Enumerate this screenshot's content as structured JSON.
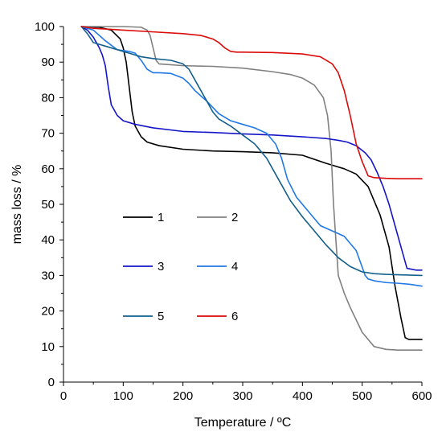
{
  "chart_data": {
    "type": "line",
    "title": "",
    "xlabel": "Temperature  / ºC",
    "ylabel": "mass loss / %",
    "xlim": [
      0,
      600
    ],
    "ylim": [
      0,
      100
    ],
    "x_ticks": [
      "0",
      "100",
      "200",
      "300",
      "400",
      "500",
      "600"
    ],
    "y_ticks": [
      "0",
      "10",
      "20",
      "30",
      "40",
      "50",
      "60",
      "70",
      "80",
      "90",
      "100"
    ],
    "grid": false,
    "legend_placement": "lower-left inside plot, two columns",
    "series": [
      {
        "name": "1",
        "color": "#000000",
        "x": [
          30,
          60,
          80,
          95,
          100,
          105,
          110,
          115,
          120,
          130,
          140,
          160,
          200,
          250,
          300,
          350,
          400,
          440,
          470,
          490,
          510,
          530,
          545,
          555,
          565,
          572,
          578,
          600
        ],
        "y": [
          100,
          99.8,
          99,
          96.5,
          94,
          90,
          83,
          76,
          72,
          69,
          67.5,
          66.5,
          65.5,
          65,
          64.8,
          64.5,
          63.8,
          61.5,
          60,
          58.5,
          55,
          47,
          38,
          27,
          18,
          12.5,
          12,
          12
        ]
      },
      {
        "name": "2",
        "color": "#808080",
        "x": [
          30,
          100,
          130,
          140,
          145,
          150,
          155,
          160,
          200,
          250,
          300,
          350,
          380,
          400,
          420,
          435,
          442,
          448,
          452,
          456,
          460,
          470,
          480,
          500,
          520,
          540,
          560,
          600
        ],
        "y": [
          100,
          100,
          99.8,
          99,
          97.5,
          94,
          90.5,
          89.5,
          89,
          88.8,
          88.3,
          87.3,
          86.5,
          85.5,
          83.5,
          80,
          75,
          65,
          50,
          40,
          30,
          25,
          21,
          14,
          10,
          9.2,
          9,
          9
        ]
      },
      {
        "name": "3",
        "color": "#1515c8",
        "x": [
          30,
          40,
          50,
          60,
          65,
          70,
          75,
          80,
          90,
          100,
          120,
          150,
          200,
          250,
          300,
          350,
          400,
          440,
          460,
          475,
          490,
          505,
          515,
          525,
          535,
          545,
          555,
          565,
          575,
          590,
          600
        ],
        "y": [
          100,
          99,
          97,
          94,
          92,
          89,
          83,
          78,
          75,
          73.5,
          72.5,
          71.5,
          70.5,
          70.2,
          69.8,
          69.5,
          69,
          68.5,
          68,
          67.5,
          66.5,
          64.5,
          62.5,
          59,
          55,
          50,
          44,
          38,
          32,
          31.5,
          31.5
        ]
      },
      {
        "name": "4",
        "color": "#1e78e6",
        "x": [
          30,
          40,
          50,
          70,
          90,
          110,
          120,
          130,
          140,
          150,
          160,
          180,
          200,
          210,
          220,
          240,
          260,
          280,
          300,
          320,
          340,
          355,
          365,
          375,
          390,
          410,
          430,
          450,
          470,
          490,
          505,
          510,
          520,
          540,
          560,
          580,
          600
        ],
        "y": [
          100,
          99.5,
          99,
          96,
          93.5,
          93,
          92.5,
          90.5,
          88,
          87,
          87,
          86.8,
          85.5,
          84,
          82,
          79,
          75.5,
          73.5,
          72.5,
          71.5,
          70,
          67,
          63,
          57,
          52,
          48,
          44,
          42.5,
          41,
          37,
          30,
          29,
          28.5,
          28,
          27.8,
          27.5,
          27
        ]
      },
      {
        "name": "5",
        "color": "#135f8c",
        "x": [
          30,
          40,
          50,
          70,
          90,
          100,
          110,
          120,
          130,
          150,
          180,
          200,
          210,
          220,
          230,
          240,
          250,
          260,
          280,
          300,
          320,
          340,
          360,
          380,
          400,
          420,
          440,
          460,
          480,
          500,
          520,
          540,
          560,
          600
        ],
        "y": [
          100,
          98,
          95.5,
          94.5,
          93.5,
          93,
          92.5,
          92,
          91.5,
          91,
          90.5,
          89.5,
          88,
          85,
          82,
          79,
          76,
          74,
          72,
          69.5,
          67,
          63,
          57,
          51,
          46.5,
          42.5,
          38.5,
          35,
          32.5,
          31,
          30.5,
          30.3,
          30.2,
          30
        ]
      },
      {
        "name": "6",
        "color": "#dc0a0a",
        "x": [
          30,
          50,
          100,
          150,
          200,
          230,
          250,
          260,
          270,
          280,
          290,
          300,
          350,
          400,
          430,
          450,
          460,
          470,
          480,
          490,
          500,
          510,
          520,
          540,
          560,
          600
        ],
        "y": [
          100,
          99.5,
          99,
          98.5,
          98,
          97.5,
          96.5,
          95.5,
          94,
          93,
          92.8,
          92.8,
          92.7,
          92.3,
          91.5,
          89.5,
          87,
          82,
          75,
          67,
          62,
          58,
          57.5,
          57.3,
          57.2,
          57.2
        ]
      }
    ]
  }
}
